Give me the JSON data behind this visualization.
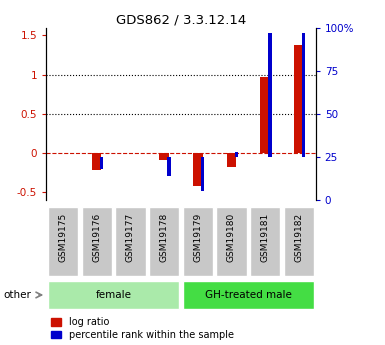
{
  "title": "GDS862 / 3.3.12.14",
  "samples": [
    "GSM19175",
    "GSM19176",
    "GSM19177",
    "GSM19178",
    "GSM19179",
    "GSM19180",
    "GSM19181",
    "GSM19182"
  ],
  "log_ratio": [
    0.0,
    -0.22,
    0.0,
    -0.09,
    -0.42,
    -0.18,
    0.97,
    1.38
  ],
  "pct_rank": [
    25,
    18,
    25,
    14,
    5,
    28,
    97,
    97
  ],
  "groups": [
    {
      "label": "female",
      "start": 0,
      "end": 3,
      "color": "#aaeaaa"
    },
    {
      "label": "GH-treated male",
      "start": 4,
      "end": 7,
      "color": "#44dd44"
    }
  ],
  "red_color": "#cc1100",
  "blue_color": "#0000cc",
  "ylim_left": [
    -0.6,
    1.6
  ],
  "ylim_right": [
    0,
    100
  ],
  "yticks_left": [
    -0.5,
    0.0,
    0.5,
    1.0,
    1.5
  ],
  "ytick_labels_left": [
    "-0.5",
    "0",
    "0.5",
    "1",
    "1.5"
  ],
  "yticks_right": [
    0,
    25,
    50,
    75,
    100
  ],
  "ytick_labels_right": [
    "0",
    "25",
    "50",
    "75",
    "100%"
  ],
  "hlines": [
    0.5,
    1.0
  ],
  "zero_dash_color": "#cc1100",
  "legend_items": [
    "log ratio",
    "percentile rank within the sample"
  ],
  "bg_label": "#c8c8c8",
  "female_color": "#aaeaaa",
  "male_color": "#44dd44"
}
